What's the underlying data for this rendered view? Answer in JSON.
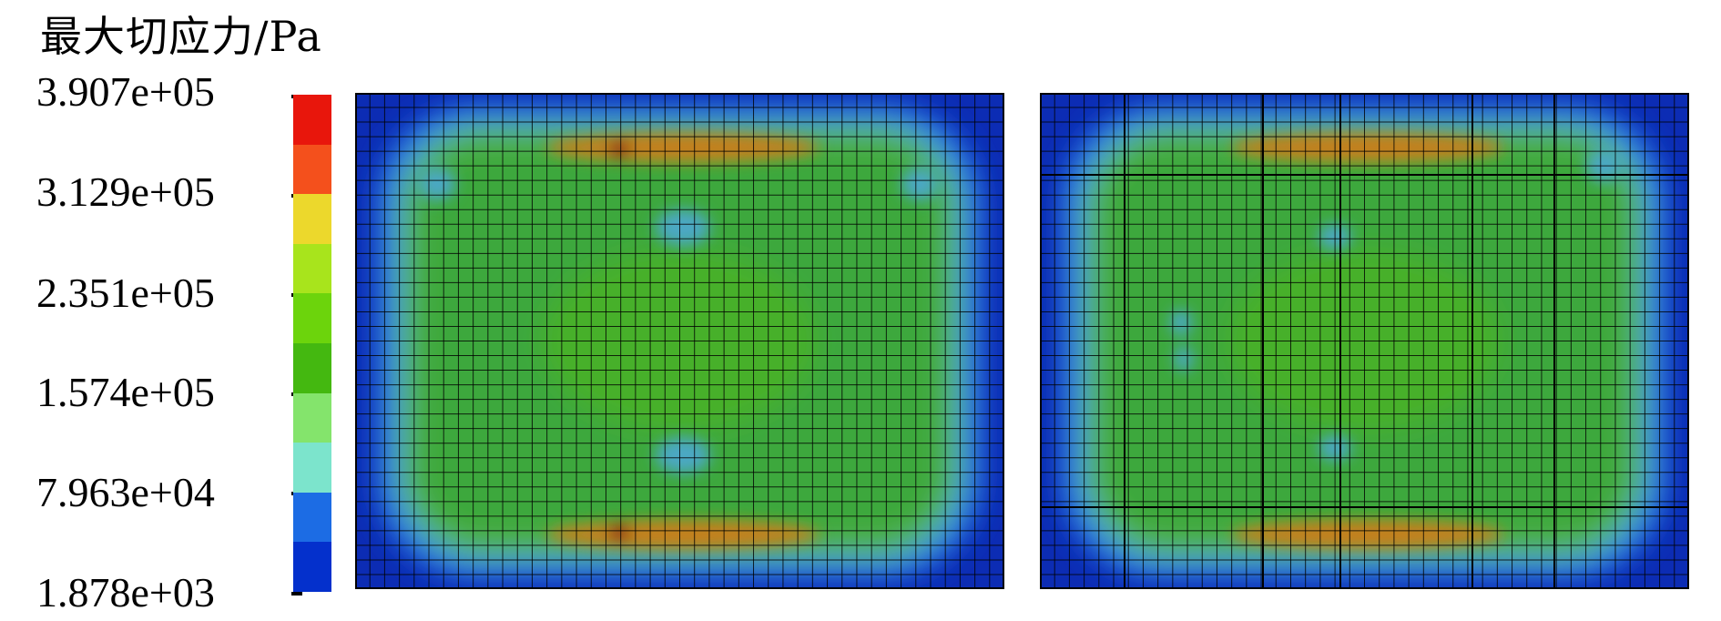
{
  "legend": {
    "title": "最大切应力/Pa",
    "ticks": [
      "3.907e+05",
      "3.129e+05",
      "2.351e+05",
      "1.574e+05",
      "7.963e+04",
      "1.878e+03"
    ],
    "colors": [
      "#e8160c",
      "#f4501c",
      "#ecd82c",
      "#a8e41c",
      "#6cd40c",
      "#44b810",
      "#84e46c",
      "#7ce4cc",
      "#1c6ce4",
      "#0430cc"
    ]
  },
  "palette": {
    "border_blue": "#0c2cb4",
    "edge_blue": "#1c6ce4",
    "cyan_blue": "#4ca8c4",
    "light_green": "#54b44c",
    "green": "#3ca83c",
    "orange": "#c4801c",
    "dark_red": "#8c1c0c",
    "mesh_line": "#000000"
  },
  "panels": [
    {
      "name": "panel-left"
    },
    {
      "name": "panel-right"
    }
  ]
}
